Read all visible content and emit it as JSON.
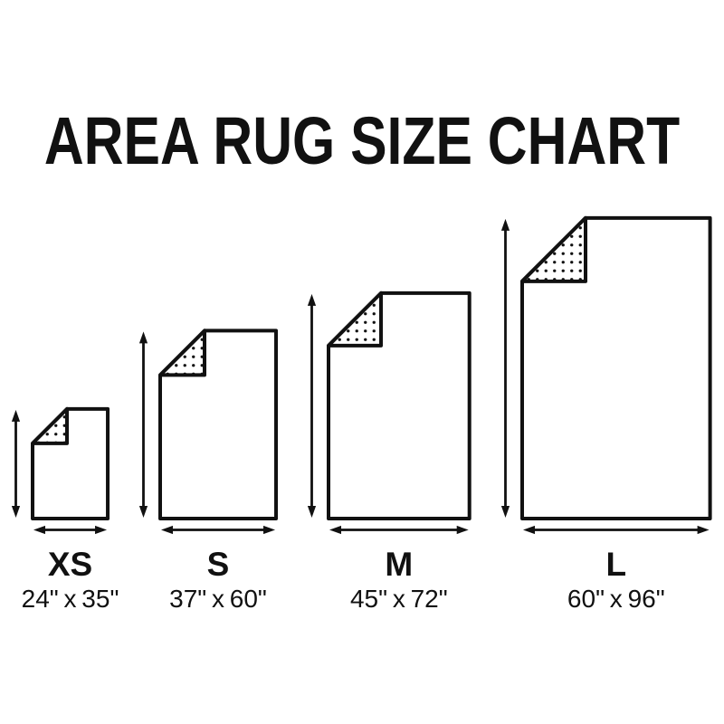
{
  "title": "AREA RUG SIZE CHART",
  "chart_data": {
    "type": "table",
    "title": "AREA RUG SIZE CHART",
    "unit": "inches",
    "categories": [
      "XS",
      "S",
      "M",
      "L"
    ],
    "series": [
      {
        "name": "width",
        "values": [
          24,
          37,
          45,
          60
        ]
      },
      {
        "name": "length",
        "values": [
          35,
          60,
          72,
          96
        ]
      }
    ]
  },
  "rugs": [
    {
      "id": "xs",
      "size_label": "XS",
      "dimensions": "24\" x 35\"",
      "width_in": 24,
      "length_in": 35
    },
    {
      "id": "s",
      "size_label": "S",
      "dimensions": "37\" x 60\"",
      "width_in": 37,
      "length_in": 60
    },
    {
      "id": "m",
      "size_label": "M",
      "dimensions": "45\" x 72\"",
      "width_in": 45,
      "length_in": 72
    },
    {
      "id": "l",
      "size_label": "L",
      "dimensions": "60\" x 96\"",
      "width_in": 60,
      "length_in": 96
    }
  ],
  "colors": {
    "ink": "#111111",
    "background": "#ffffff"
  }
}
